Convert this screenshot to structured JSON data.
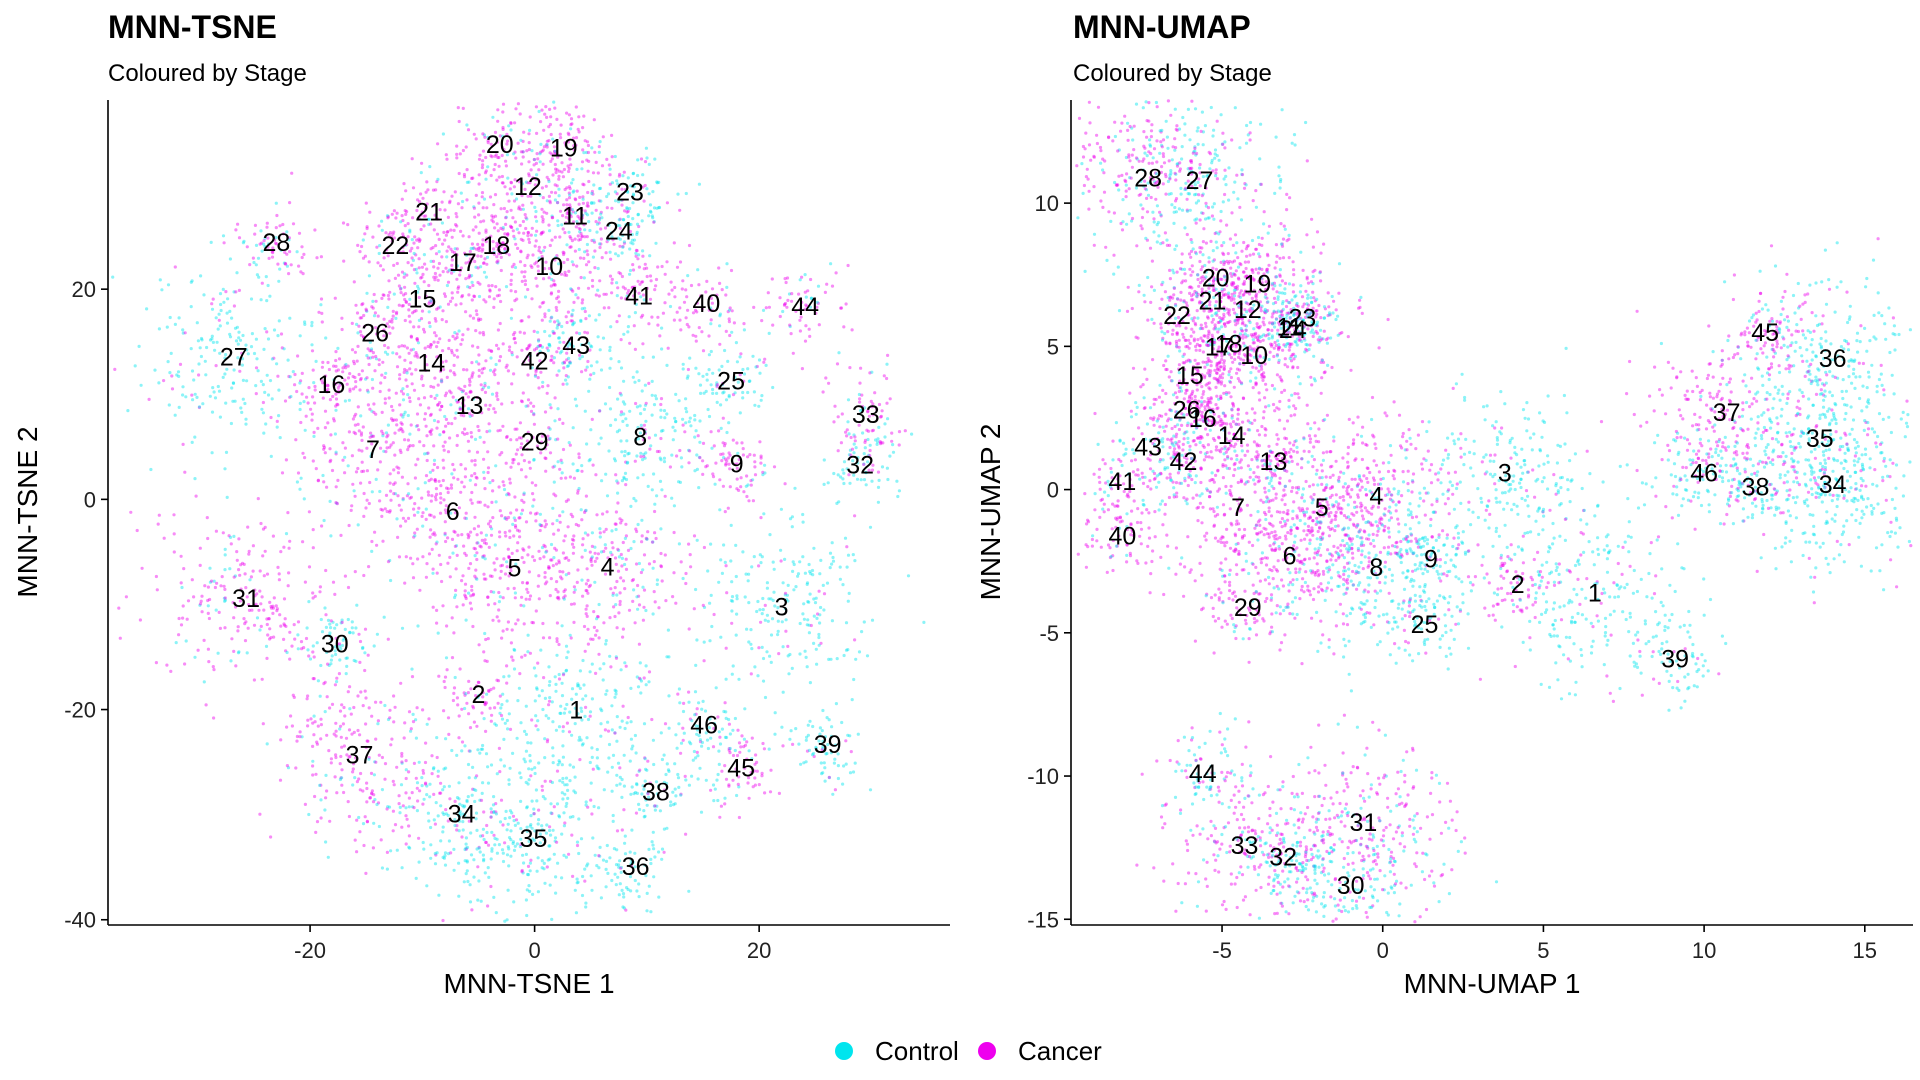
{
  "legend": {
    "items": [
      {
        "label": "Control",
        "color": "#00E5EE"
      },
      {
        "label": "Cancer",
        "color": "#EE00EE"
      }
    ]
  },
  "chart_data": [
    {
      "type": "scatter",
      "title": "MNN-TSNE",
      "subtitle": "Coloured by Stage",
      "xlabel": "MNN-TSNE 1",
      "ylabel": "MNN-TSNE 2",
      "xlim": [
        -38,
        37
      ],
      "ylim": [
        -40.5,
        38
      ],
      "xticks": [
        -20,
        0,
        20
      ],
      "yticks": [
        -40,
        -20,
        0,
        20
      ],
      "grid": false,
      "legend_position": "bottom",
      "series": [
        {
          "name": "Control",
          "color": "#00E5EE"
        },
        {
          "name": "Cancer",
          "color": "#EE00EE"
        }
      ],
      "cluster_labels": [
        {
          "label": "1",
          "x": 3.7,
          "y": -20
        },
        {
          "label": "2",
          "x": -5,
          "y": -18.5
        },
        {
          "label": "3",
          "x": 22,
          "y": -10.2
        },
        {
          "label": "4",
          "x": 6.5,
          "y": -6.4
        },
        {
          "label": "5",
          "x": -1.8,
          "y": -6.5
        },
        {
          "label": "6",
          "x": -7.3,
          "y": -1.1
        },
        {
          "label": "7",
          "x": -14.4,
          "y": 4.8
        },
        {
          "label": "8",
          "x": 9.4,
          "y": 6.0
        },
        {
          "label": "9",
          "x": 18,
          "y": 3.4
        },
        {
          "label": "10",
          "x": 1.3,
          "y": 22.2
        },
        {
          "label": "11",
          "x": 3.6,
          "y": 27.0
        },
        {
          "label": "12",
          "x": -0.6,
          "y": 29.8
        },
        {
          "label": "13",
          "x": -5.8,
          "y": 9.0
        },
        {
          "label": "14",
          "x": -9.2,
          "y": 13.0
        },
        {
          "label": "15",
          "x": -10,
          "y": 19.1
        },
        {
          "label": "16",
          "x": -18.1,
          "y": 11.0
        },
        {
          "label": "17",
          "x": -6.4,
          "y": 22.6
        },
        {
          "label": "18",
          "x": -3.4,
          "y": 24.2
        },
        {
          "label": "19",
          "x": 2.6,
          "y": 33.5
        },
        {
          "label": "20",
          "x": -3.1,
          "y": 33.8
        },
        {
          "label": "21",
          "x": -9.4,
          "y": 27.4
        },
        {
          "label": "22",
          "x": -12.4,
          "y": 24.2
        },
        {
          "label": "23",
          "x": 8.5,
          "y": 29.3
        },
        {
          "label": "24",
          "x": 7.5,
          "y": 25.6
        },
        {
          "label": "25",
          "x": 17.5,
          "y": 11.3
        },
        {
          "label": "26",
          "x": -14.2,
          "y": 15.9
        },
        {
          "label": "27",
          "x": -26.8,
          "y": 13.6
        },
        {
          "label": "28",
          "x": -23,
          "y": 24.5
        },
        {
          "label": "29",
          "x": 0,
          "y": 5.5
        },
        {
          "label": "30",
          "x": -17.8,
          "y": -13.7
        },
        {
          "label": "31",
          "x": -25.7,
          "y": -9.4
        },
        {
          "label": "32",
          "x": 29,
          "y": 3.3
        },
        {
          "label": "33",
          "x": 29.5,
          "y": 8.1
        },
        {
          "label": "34",
          "x": -6.5,
          "y": -29.9
        },
        {
          "label": "35",
          "x": -0.1,
          "y": -32.2
        },
        {
          "label": "36",
          "x": 9,
          "y": -34.9
        },
        {
          "label": "37",
          "x": -15.6,
          "y": -24.3
        },
        {
          "label": "38",
          "x": 10.8,
          "y": -27.8
        },
        {
          "label": "39",
          "x": 26.1,
          "y": -23.3
        },
        {
          "label": "40",
          "x": 15.3,
          "y": 18.7
        },
        {
          "label": "41",
          "x": 9.3,
          "y": 19.4
        },
        {
          "label": "42",
          "x": 0,
          "y": 13.2
        },
        {
          "label": "43",
          "x": 3.7,
          "y": 14.7
        },
        {
          "label": "44",
          "x": 24.1,
          "y": 18.4
        },
        {
          "label": "45",
          "x": 18.4,
          "y": -25.5
        },
        {
          "label": "46",
          "x": 15.1,
          "y": -21.4
        }
      ]
    },
    {
      "type": "scatter",
      "title": "MNN-UMAP",
      "subtitle": "Coloured by Stage",
      "xlabel": "MNN-UMAP 1",
      "ylabel": "MNN-UMAP 2",
      "xlim": [
        -9.7,
        16.5
      ],
      "ylim": [
        -15.2,
        13.6
      ],
      "xticks": [
        -5,
        0,
        5,
        10,
        15
      ],
      "yticks": [
        -15,
        -10,
        -5,
        0,
        5,
        10
      ],
      "grid": false,
      "legend_position": "bottom",
      "series": [
        {
          "name": "Control",
          "color": "#00E5EE"
        },
        {
          "name": "Cancer",
          "color": "#EE00EE"
        }
      ],
      "cluster_labels": [
        {
          "label": "1",
          "x": 6.6,
          "y": -3.6
        },
        {
          "label": "2",
          "x": 4.2,
          "y": -3.3
        },
        {
          "label": "3",
          "x": 3.8,
          "y": 0.6
        },
        {
          "label": "4",
          "x": -0.2,
          "y": -0.2
        },
        {
          "label": "5",
          "x": -1.9,
          "y": -0.6
        },
        {
          "label": "6",
          "x": -2.9,
          "y": -2.3
        },
        {
          "label": "7",
          "x": -4.5,
          "y": -0.6
        },
        {
          "label": "8",
          "x": -0.2,
          "y": -2.7
        },
        {
          "label": "9",
          "x": 1.5,
          "y": -2.4
        },
        {
          "label": "10",
          "x": -4.0,
          "y": 4.7
        },
        {
          "label": "11",
          "x": -2.9,
          "y": 5.7
        },
        {
          "label": "12",
          "x": -4.2,
          "y": 6.3
        },
        {
          "label": "13",
          "x": -3.4,
          "y": 1.0
        },
        {
          "label": "14",
          "x": -4.7,
          "y": 1.9
        },
        {
          "label": "15",
          "x": -6.0,
          "y": 4.0
        },
        {
          "label": "16",
          "x": -5.6,
          "y": 2.5
        },
        {
          "label": "17",
          "x": -5.1,
          "y": 5.0
        },
        {
          "label": "18",
          "x": -4.8,
          "y": 5.1
        },
        {
          "label": "19",
          "x": -3.9,
          "y": 7.2
        },
        {
          "label": "20",
          "x": -5.2,
          "y": 7.4
        },
        {
          "label": "21",
          "x": -5.3,
          "y": 6.6
        },
        {
          "label": "22",
          "x": -6.4,
          "y": 6.1
        },
        {
          "label": "23",
          "x": -2.5,
          "y": 6.0
        },
        {
          "label": "24",
          "x": -2.8,
          "y": 5.6
        },
        {
          "label": "25",
          "x": 1.3,
          "y": -4.7
        },
        {
          "label": "26",
          "x": -6.1,
          "y": 2.8
        },
        {
          "label": "27",
          "x": -5.7,
          "y": 10.8
        },
        {
          "label": "28",
          "x": -7.3,
          "y": 10.9
        },
        {
          "label": "29",
          "x": -4.2,
          "y": -4.1
        },
        {
          "label": "30",
          "x": -1.0,
          "y": -13.8
        },
        {
          "label": "31",
          "x": -0.6,
          "y": -11.6
        },
        {
          "label": "32",
          "x": -3.1,
          "y": -12.8
        },
        {
          "label": "33",
          "x": -4.3,
          "y": -12.4
        },
        {
          "label": "34",
          "x": 14.0,
          "y": 0.2
        },
        {
          "label": "35",
          "x": 13.6,
          "y": 1.8
        },
        {
          "label": "36",
          "x": 14.0,
          "y": 4.6
        },
        {
          "label": "37",
          "x": 10.7,
          "y": 2.7
        },
        {
          "label": "38",
          "x": 11.6,
          "y": 0.1
        },
        {
          "label": "39",
          "x": 9.1,
          "y": -5.9
        },
        {
          "label": "40",
          "x": -8.1,
          "y": -1.6
        },
        {
          "label": "41",
          "x": -8.1,
          "y": 0.3
        },
        {
          "label": "42",
          "x": -6.2,
          "y": 1.0
        },
        {
          "label": "43",
          "x": -7.3,
          "y": 1.5
        },
        {
          "label": "44",
          "x": -5.6,
          "y": -9.9
        },
        {
          "label": "45",
          "x": 11.9,
          "y": 5.5
        },
        {
          "label": "46",
          "x": 10.0,
          "y": 0.6
        }
      ]
    }
  ]
}
